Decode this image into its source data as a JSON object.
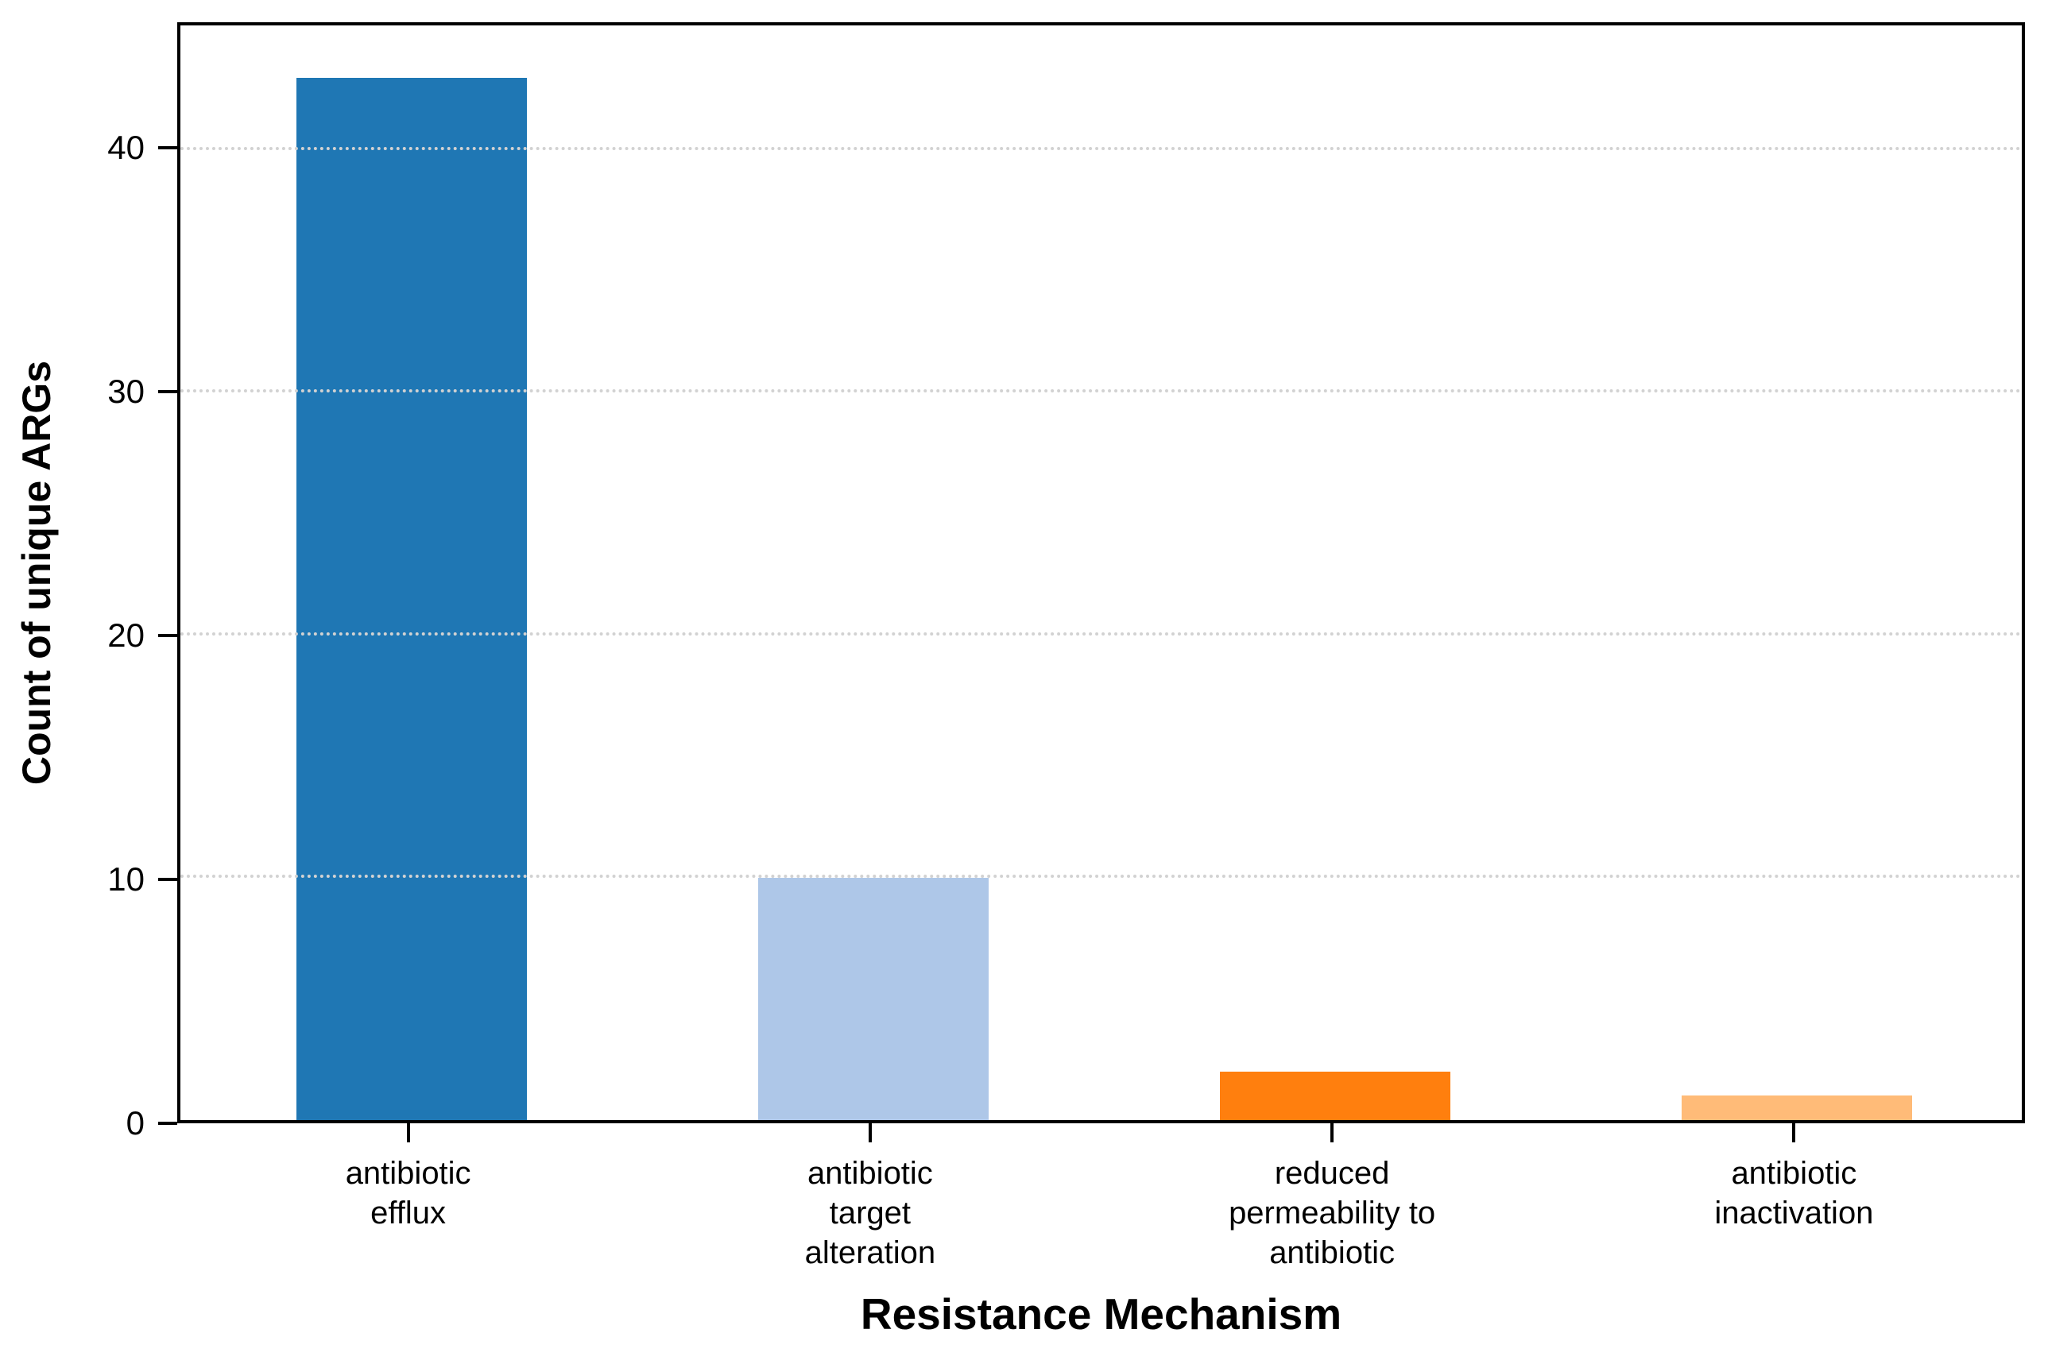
{
  "chart_data": {
    "type": "bar",
    "title": "",
    "xlabel": "Resistance Mechanism",
    "ylabel": "Count of unique ARGs",
    "categories": [
      "antibiotic\nefflux",
      "antibiotic\ntarget\nalteration",
      "reduced\npermeability to\nantibiotic",
      "antibiotic\ninactivation"
    ],
    "values": [
      43,
      10,
      2,
      1
    ],
    "bar_colors": [
      "#1f77b4",
      "#aec7e8",
      "#ff7f0e",
      "#ffbb78"
    ],
    "yticks": [
      0,
      10,
      20,
      30,
      40
    ],
    "ylim": [
      0,
      45.15
    ],
    "grid": "horizontal dotted gridlines at y ticks above 0, drawn over bars",
    "grid_color": "#d2d2d2",
    "axis_color": "#000000",
    "background_color": "#ffffff",
    "legend": "none"
  }
}
